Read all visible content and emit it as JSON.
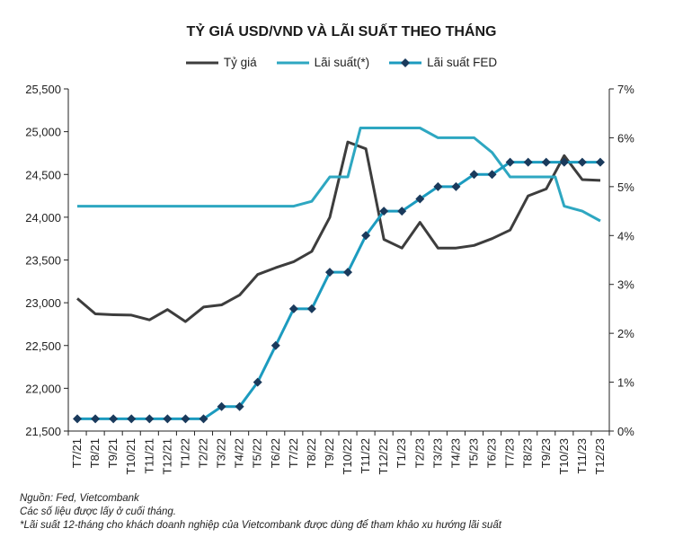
{
  "chart_data": {
    "type": "line",
    "title": "TỶ GIÁ USD/VND VÀ LÃI SUẤT THEO THÁNG",
    "categories": [
      "T7/21",
      "T8/21",
      "T9/21",
      "T10/21",
      "T11/21",
      "T12/21",
      "T1/22",
      "T2/22",
      "T3/22",
      "T4/22",
      "T5/22",
      "T6/22",
      "T7/22",
      "T8/22",
      "T9/22",
      "T10/22",
      "T11/22",
      "T12/22",
      "T1/23",
      "T2/23",
      "T3/23",
      "T4/23",
      "T5/23",
      "T6/23",
      "T7/23",
      "T8/23",
      "T9/23",
      "T10/23",
      "T11/23",
      "T12/23"
    ],
    "x_tick_labels": [
      "T7/21",
      "T8/21",
      "T9/21",
      "T10/21",
      "T11/21",
      "T12/21",
      "T1/22",
      "T2/22",
      "T3/22",
      "T4/22",
      "T5/22",
      "T6/22",
      "T7/22",
      "T8/22",
      "T9/22",
      "T10/22",
      "T11/22",
      "T12/22",
      "T1/23",
      "T2/23",
      "T3/23",
      "T4/23",
      "T5/23",
      "T6/23",
      "T7/23",
      "T8/23",
      "T9/23",
      "T10/23",
      "T11/23",
      "T12/23"
    ],
    "y_left": {
      "min": 21500,
      "max": 25500,
      "ticks": [
        "21,500",
        "22,000",
        "22,500",
        "23,000",
        "23,500",
        "24,000",
        "24,500",
        "25,000",
        "25,500"
      ]
    },
    "y_right": {
      "min": 0,
      "max": 7,
      "ticks": [
        "0%",
        "1%",
        "2%",
        "3%",
        "4%",
        "5%",
        "6%",
        "7%"
      ]
    },
    "grid": false,
    "legend_position": "top-center",
    "series": [
      {
        "name": "Tỷ giá",
        "axis": "left",
        "color": "#3d3d3d",
        "marker": "none",
        "values": [
          23050,
          22870,
          22860,
          22855,
          22800,
          22920,
          22780,
          22950,
          22975,
          23090,
          23330,
          23410,
          23480,
          23600,
          24000,
          24880,
          24800,
          23740,
          23640,
          23940,
          23640,
          23640,
          23670,
          23750,
          23850,
          24250,
          24330,
          24720,
          24440,
          24430
        ]
      },
      {
        "name": "Lãi suất(*)",
        "axis": "right",
        "color": "#2ea7c1",
        "marker": "none",
        "points": [
          {
            "x": 0,
            "y": 4.6
          },
          {
            "x": 12,
            "y": 4.6
          },
          {
            "x": 13,
            "y": 4.7
          },
          {
            "x": 14,
            "y": 5.2
          },
          {
            "x": 15,
            "y": 5.2
          },
          {
            "x": 15.7,
            "y": 6.2
          },
          {
            "x": 19,
            "y": 6.2
          },
          {
            "x": 20,
            "y": 6.0
          },
          {
            "x": 22,
            "y": 6.0
          },
          {
            "x": 23,
            "y": 5.7
          },
          {
            "x": 24,
            "y": 5.2
          },
          {
            "x": 26,
            "y": 5.2
          },
          {
            "x": 26.5,
            "y": 5.2
          },
          {
            "x": 27,
            "y": 4.6
          },
          {
            "x": 28,
            "y": 4.5
          },
          {
            "x": 29,
            "y": 4.3
          }
        ]
      },
      {
        "name": "Lãi suất FED",
        "axis": "right",
        "color": "#1c9bbf",
        "marker_color": "#1a3a5c",
        "marker": "diamond",
        "values": [
          0.25,
          0.25,
          0.25,
          0.25,
          0.25,
          0.25,
          0.25,
          0.25,
          0.5,
          0.5,
          1.0,
          1.75,
          2.5,
          2.5,
          3.25,
          3.25,
          4.0,
          4.5,
          4.5,
          4.75,
          5.0,
          5.0,
          5.25,
          5.25,
          5.5,
          5.5,
          5.5,
          5.5,
          5.5,
          5.5
        ]
      }
    ]
  },
  "notes": [
    "Nguồn: Fed, Vietcombank",
    "Các số liệu được lấy ở cuối tháng.",
    "*Lãi suất 12-tháng cho khách doanh nghiệp của Vietcombank được dùng để tham khảo xu hướng lãi suất"
  ]
}
